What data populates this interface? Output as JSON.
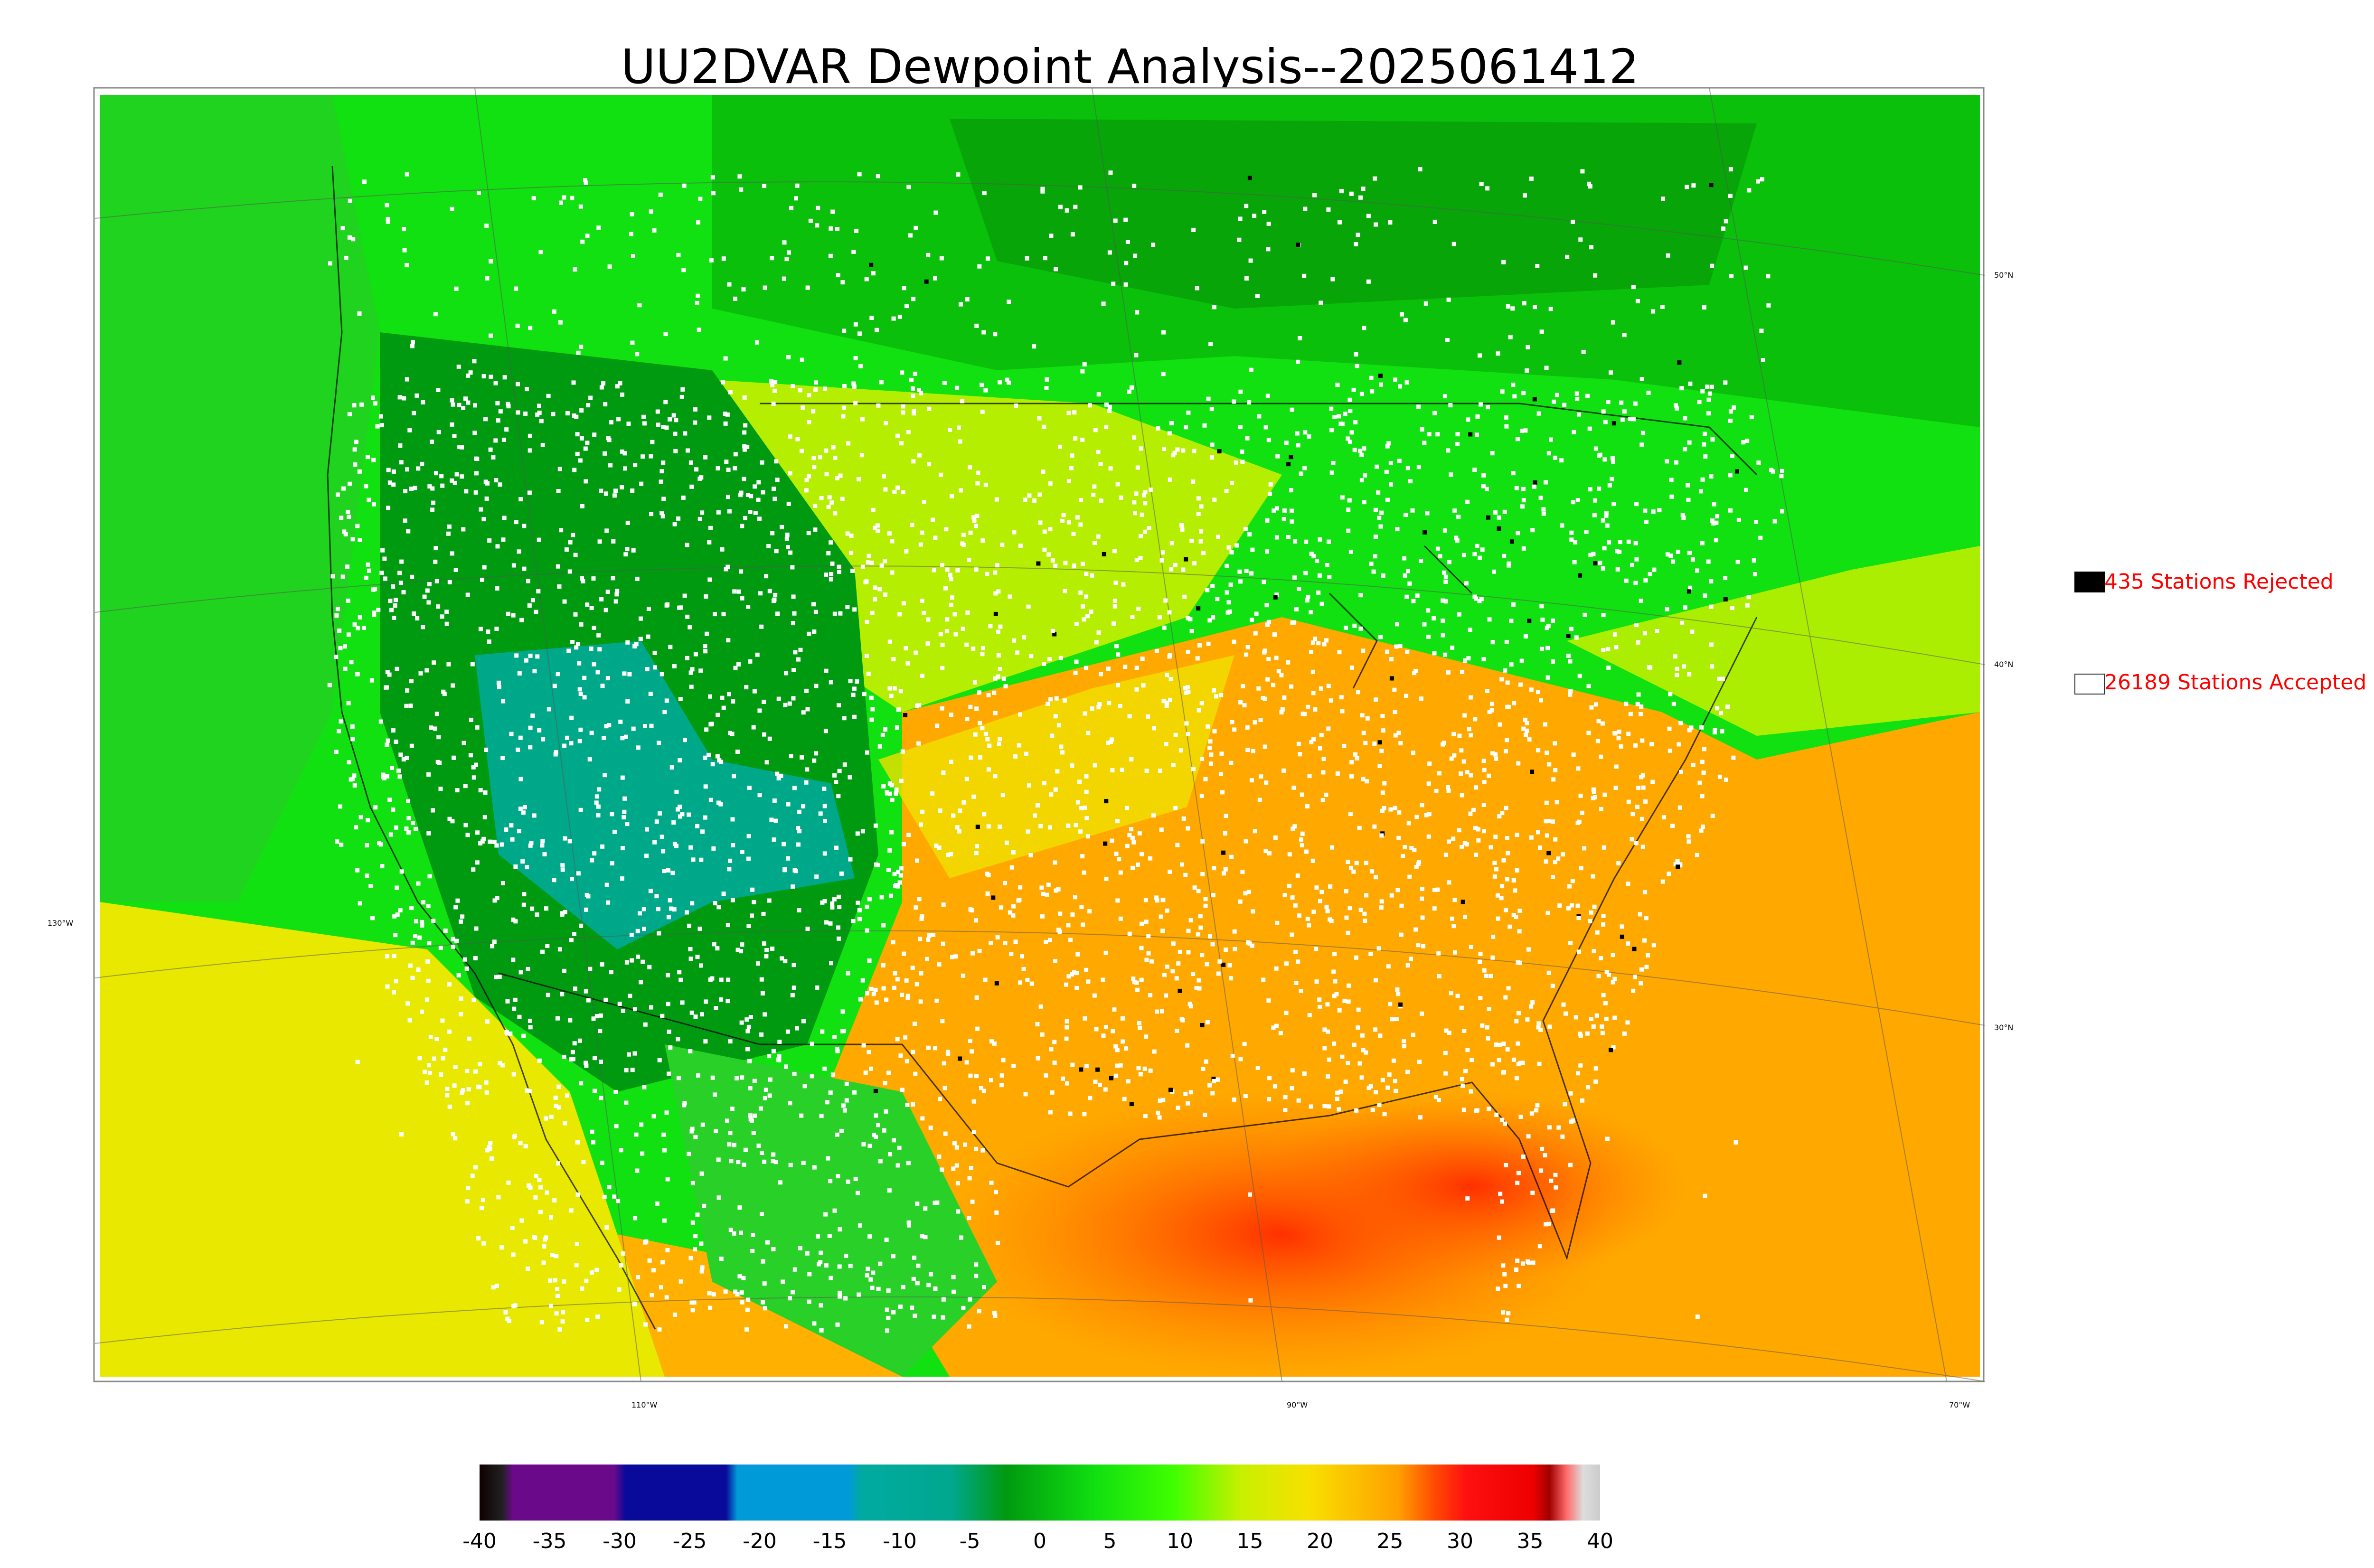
{
  "title": "UU2DVAR Dewpoint Analysis--2025061412",
  "legend": {
    "rejected": {
      "label": "435 Stations Rejected",
      "color": "#000000"
    },
    "accepted": {
      "label": "26189 Stations Accepted",
      "color": "#ffffff"
    }
  },
  "colorbar": {
    "min": -40,
    "max": 40,
    "ticks": [
      "-40",
      "-35",
      "-30",
      "-25",
      "-20",
      "-15",
      "-10",
      "-5",
      "0",
      "5",
      "10",
      "15",
      "20",
      "25",
      "30",
      "35",
      "40"
    ]
  },
  "grid_labels": {
    "lat": [
      "50°N",
      "40°N",
      "30°N"
    ],
    "lon": [
      "130°W",
      "110°W",
      "90°W",
      "70°W"
    ]
  },
  "colors": {
    "cold": "#00a88a",
    "cool": "#009a10",
    "mild": "#11e011",
    "warm": "#c8f000",
    "hot": "#ffb000",
    "very_hot": "#ff4000"
  }
}
